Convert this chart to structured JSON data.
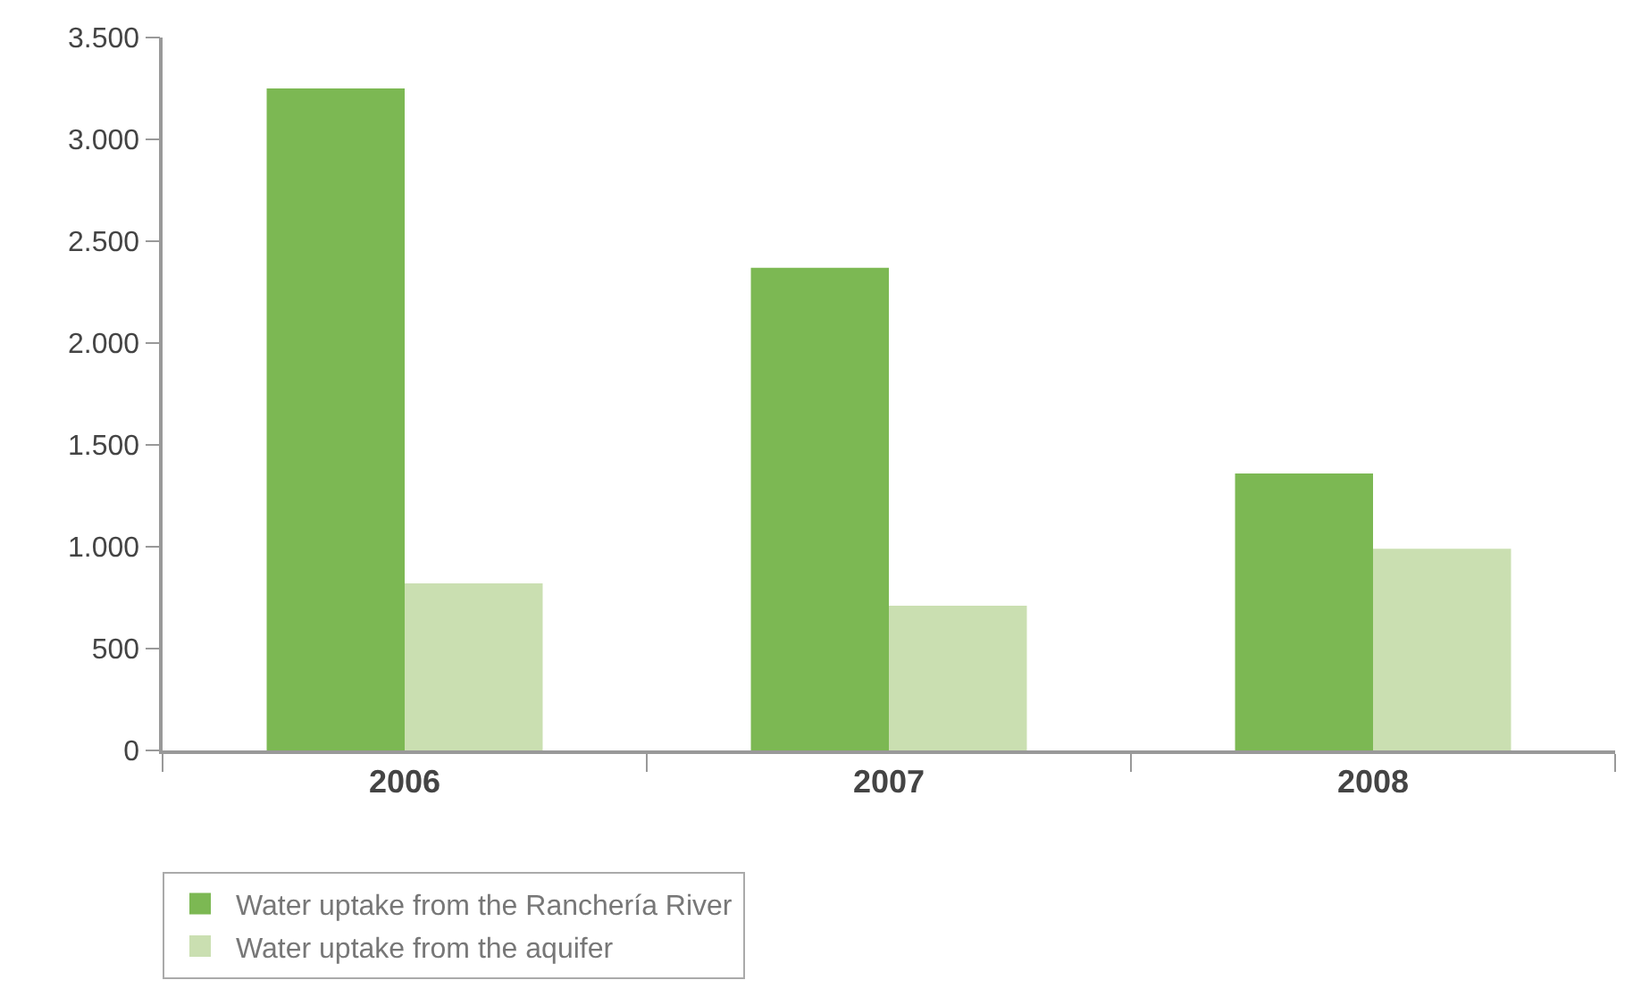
{
  "chart_data": {
    "type": "bar",
    "categories": [
      "2006",
      "2007",
      "2008"
    ],
    "series": [
      {
        "name": "Water uptake from the Ranchería River",
        "color": "#7cb853",
        "values": [
          3250,
          2370,
          1360
        ]
      },
      {
        "name": "Water uptake from the aquifer",
        "color": "#cadfb1",
        "values": [
          820,
          710,
          990
        ]
      }
    ],
    "ylim": [
      0,
      3500
    ],
    "yticks": [
      0,
      500,
      {
        "value": 1000,
        "label": "1.000"
      },
      {
        "value": 1500,
        "label": "1.500"
      },
      {
        "value": 2000,
        "label": "2.000"
      },
      {
        "value": 2500,
        "label": "2.500"
      },
      {
        "value": 3000,
        "label": "3.000"
      },
      {
        "value": 3500,
        "label": "3.500"
      }
    ],
    "grid": false,
    "legend": "bottom left"
  }
}
